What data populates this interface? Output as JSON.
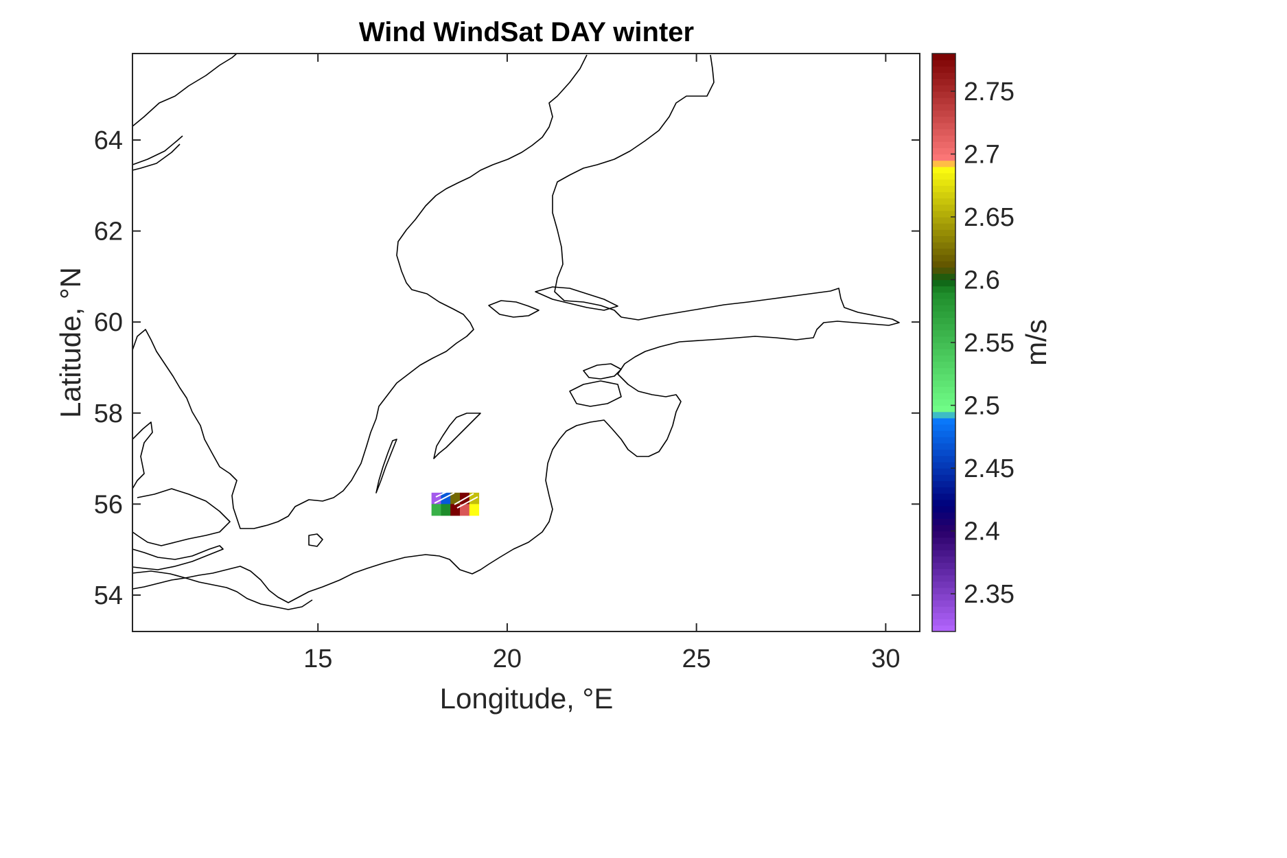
{
  "title": "Wind WindSat DAY winter",
  "xlabel": "Longitude, °E",
  "ylabel": "Latitude, °N",
  "x_ticks": [
    "15",
    "20",
    "25",
    "30"
  ],
  "y_ticks": [
    "54",
    "56",
    "58",
    "60",
    "62",
    "64"
  ],
  "colorbar": {
    "label": "m/s",
    "ticks": [
      "2.35",
      "2.4",
      "2.45",
      "2.5",
      "2.55",
      "2.6",
      "2.65",
      "2.7",
      "2.75"
    ],
    "range": [
      2.32,
      2.78
    ],
    "colors": [
      "#a855f7",
      "#3a0080",
      "#0a0aa0",
      "#0a7cff",
      "#6cff88",
      "#0f6a1a",
      "#7a6a00",
      "#ffff00",
      "#ff6b6b",
      "#8b0000"
    ]
  },
  "chart_data": {
    "type": "heatmap",
    "title": "Wind WindSat DAY winter",
    "xlabel": "Longitude, °E",
    "ylabel": "Latitude, °N",
    "xlim": [
      10.1,
      30.9
    ],
    "ylim": [
      53.2,
      65.9
    ],
    "x_ticks": [
      15,
      20,
      25,
      30
    ],
    "y_ticks": [
      54,
      56,
      58,
      60,
      62,
      64
    ],
    "colorbar_label": "m/s",
    "colorbar_range": [
      2.32,
      2.78
    ],
    "colorbar_ticks": [
      2.35,
      2.4,
      2.45,
      2.5,
      2.55,
      2.6,
      2.65,
      2.7,
      2.75
    ],
    "grid": false,
    "cells": [
      {
        "lon": 18.125,
        "lat": 56.125,
        "value": 2.33
      },
      {
        "lon": 18.375,
        "lat": 56.125,
        "value": 2.47
      },
      {
        "lon": 18.625,
        "lat": 56.125,
        "value": 2.62
      },
      {
        "lon": 18.875,
        "lat": 56.125,
        "value": 2.78
      },
      {
        "lon": 19.125,
        "lat": 56.125,
        "value": 2.66
      },
      {
        "lon": 18.125,
        "lat": 55.875,
        "value": 2.56
      },
      {
        "lon": 18.375,
        "lat": 55.875,
        "value": 2.59
      },
      {
        "lon": 18.625,
        "lat": 55.875,
        "value": 2.78
      },
      {
        "lon": 18.875,
        "lat": 55.875,
        "value": 2.72
      },
      {
        "lon": 19.125,
        "lat": 55.875,
        "value": 2.69
      }
    ]
  }
}
